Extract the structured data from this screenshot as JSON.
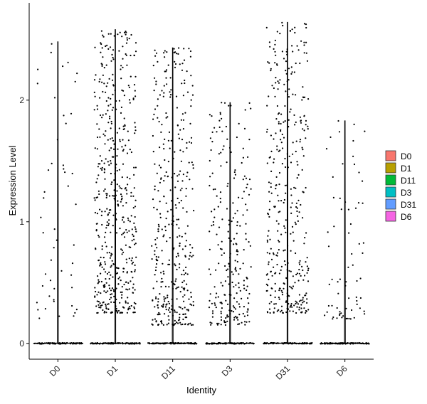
{
  "chart_data": {
    "type": "scatter",
    "subtype": "violin-jitter",
    "xlabel": "Identity",
    "ylabel": "Expression Level",
    "categories": [
      "D0",
      "D1",
      "D11",
      "D3",
      "D31",
      "D6"
    ],
    "ylim": [
      -0.13,
      2.8
    ],
    "yticks": [
      0,
      1,
      2
    ],
    "grid": false,
    "legend_position": "right",
    "legend": [
      {
        "label": "D0",
        "color": "#F8766D"
      },
      {
        "label": "D1",
        "color": "#B79F00"
      },
      {
        "label": "D11",
        "color": "#00BA38"
      },
      {
        "label": "D3",
        "color": "#00BFC4"
      },
      {
        "label": "D31",
        "color": "#619CFF"
      },
      {
        "label": "D6",
        "color": "#F564E3"
      }
    ],
    "series": [
      {
        "category": "D0",
        "max": 2.48,
        "nonzero_min": 0.2,
        "nonzero_count": 50,
        "zero_fraction": 0.95
      },
      {
        "category": "D1",
        "max": 2.58,
        "nonzero_min": 0.25,
        "nonzero_count": 500,
        "zero_fraction": 0.55
      },
      {
        "category": "D11",
        "max": 2.43,
        "nonzero_min": 0.15,
        "nonzero_count": 380,
        "zero_fraction": 0.7
      },
      {
        "category": "D3",
        "max": 1.98,
        "nonzero_min": 0.15,
        "nonzero_count": 240,
        "zero_fraction": 0.8
      },
      {
        "category": "D31",
        "max": 2.64,
        "nonzero_min": 0.25,
        "nonzero_count": 380,
        "zero_fraction": 0.7
      },
      {
        "category": "D6",
        "max": 1.83,
        "nonzero_min": 0.2,
        "nonzero_count": 70,
        "zero_fraction": 0.93
      }
    ]
  }
}
